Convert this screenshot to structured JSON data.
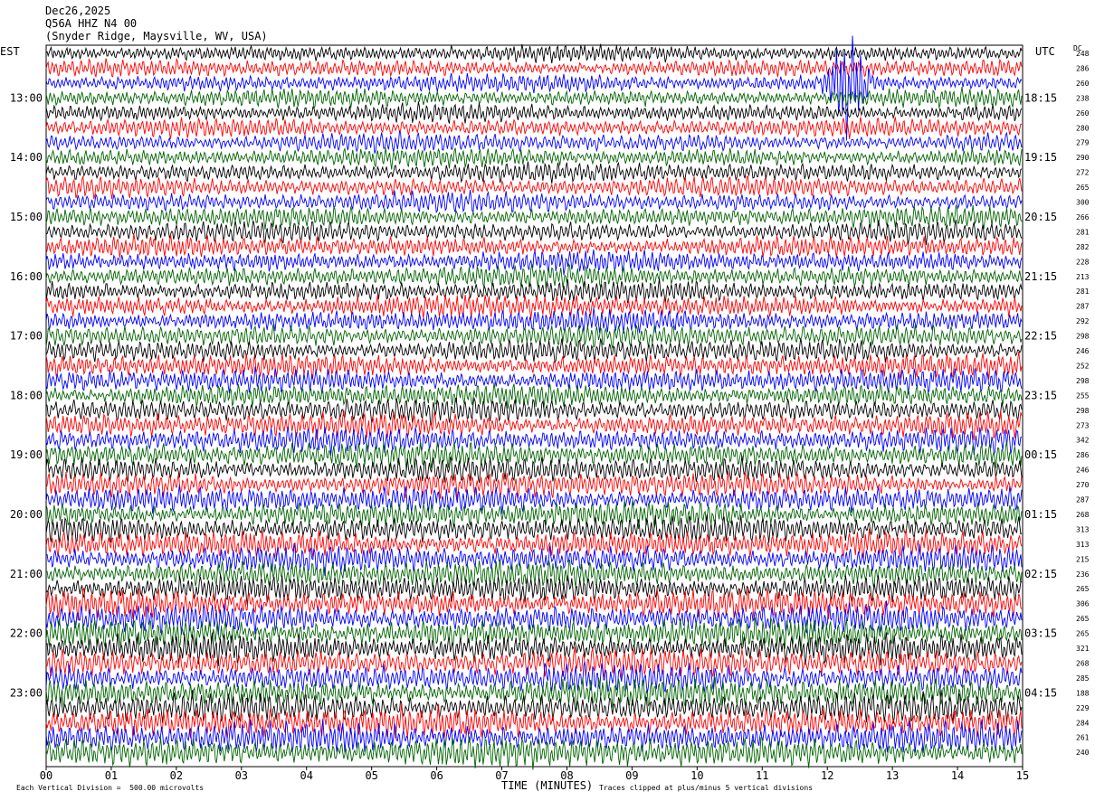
{
  "header": {
    "date": "Dec26,2025",
    "station": "Q56A HHZ N4 00",
    "location": "(Snyder Ridge, Maysville, WV, USA)"
  },
  "left_label": "EST",
  "right_label": "UTC",
  "dc_label": "DC",
  "footer": {
    "scale": "Each Vertical Division =  500.00 microvolts",
    "xlabel": "TIME (MINUTES)",
    "clip_note": "Traces clipped at plus/minus 5 vertical divisions"
  },
  "chart_data": {
    "type": "line",
    "subtype": "helicorder",
    "xlabel": "TIME (MINUTES)",
    "xlim": [
      0,
      15
    ],
    "x_ticks": [
      "00",
      "01",
      "02",
      "03",
      "04",
      "05",
      "06",
      "07",
      "08",
      "09",
      "10",
      "11",
      "12",
      "13",
      "14",
      "15"
    ],
    "trace_colors": [
      "#000000",
      "#ff0000",
      "#0000ff",
      "#006400"
    ],
    "est_labels": [
      "13:00",
      "14:00",
      "15:00",
      "16:00",
      "17:00",
      "18:00",
      "19:00",
      "20:00",
      "21:00",
      "22:00",
      "23:00"
    ],
    "utc_labels": [
      "18:15",
      "19:15",
      "20:15",
      "21:15",
      "22:15",
      "23:15",
      "00:15",
      "01:15",
      "02:15",
      "03:15",
      "04:15"
    ],
    "dc_values": [
      248,
      286,
      260,
      238,
      260,
      280,
      279,
      290,
      272,
      265,
      300,
      266,
      281,
      282,
      228,
      213,
      281,
      287,
      292,
      298,
      246,
      252,
      298,
      255,
      298,
      273,
      342,
      286,
      246,
      270,
      287,
      268,
      313,
      313,
      215,
      236,
      265,
      306,
      265,
      265,
      321,
      268,
      285,
      188,
      229,
      284,
      261,
      240
    ],
    "event": {
      "minute": 12.25,
      "trace_index": 2,
      "label": ""
    }
  }
}
